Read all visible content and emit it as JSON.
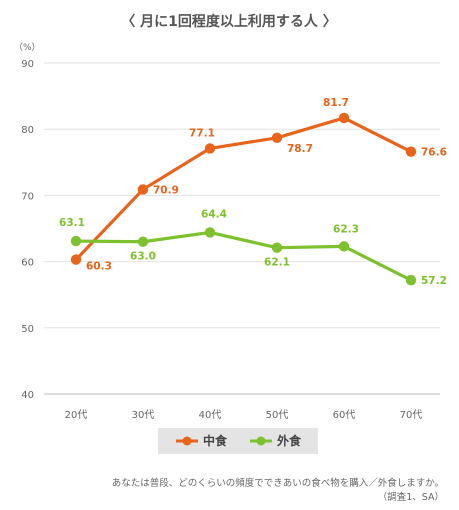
{
  "chart_data": {
    "type": "line",
    "title": "〈 月に1回程度以上利用する人 〉",
    "unit_label": "（%）",
    "categories": [
      "20代",
      "30代",
      "40代",
      "50代",
      "60代",
      "70代"
    ],
    "ylim": [
      40,
      90
    ],
    "yticks": [
      40,
      50,
      60,
      70,
      80,
      90
    ],
    "grid": true,
    "legend_position": "bottom",
    "series": [
      {
        "name": "中食",
        "color": "#E8641B",
        "values": [
          60.3,
          70.9,
          77.1,
          78.7,
          81.7,
          76.6
        ]
      },
      {
        "name": "外食",
        "color": "#7DC12E",
        "values": [
          63.1,
          63.0,
          64.4,
          62.1,
          62.3,
          57.2
        ]
      }
    ]
  },
  "footnote": {
    "line1": "あなたは普段、どのくらいの頻度でできあいの食べ物を購入／外食しますか。",
    "line2": "（調査1、SA）"
  }
}
